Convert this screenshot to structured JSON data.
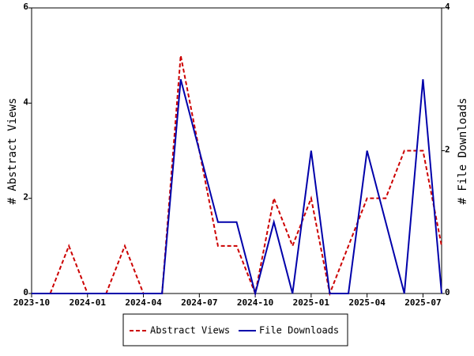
{
  "chart_data": {
    "type": "line",
    "categories": [
      "2023-10",
      null,
      null,
      "2024-01",
      null,
      null,
      "2024-04",
      null,
      null,
      "2024-07",
      null,
      null,
      "2024-10",
      null,
      null,
      "2025-01",
      null,
      null,
      "2025-04",
      null,
      null,
      "2025-07",
      null
    ],
    "y_label": "# Abstract Views",
    "y2_label": "# File Downloads",
    "series": [
      {
        "name": "Abstract Views",
        "color": "#cc0000",
        "dash": true,
        "values": [
          0,
          0,
          1,
          0,
          0,
          1,
          0,
          0,
          5,
          3,
          1,
          1,
          0,
          2,
          1,
          2,
          0,
          1,
          2,
          2,
          3,
          3,
          1
        ]
      },
      {
        "name": "File Downloads",
        "color": "#0000aa",
        "axis": "y2",
        "values": [
          0,
          0,
          0,
          0,
          0,
          0,
          0,
          0,
          3,
          2,
          1,
          1,
          0,
          1,
          0,
          2,
          0,
          0,
          2,
          1,
          0,
          3,
          0
        ]
      }
    ],
    "ylim": [
      0,
      6
    ],
    "yticks": [
      0,
      2,
      4,
      6
    ],
    "y2lim": [
      0,
      4
    ],
    "y2ticks": [
      0,
      2,
      4
    ],
    "legend": "bottom"
  }
}
